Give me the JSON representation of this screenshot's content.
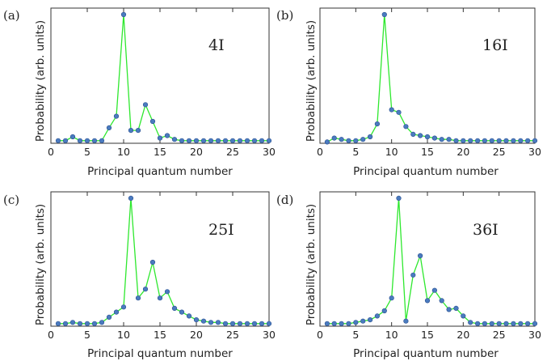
{
  "chart_data": [
    {
      "type": "line",
      "panel_label": "(a)",
      "annotation": "4I",
      "xlabel": "Principal quantum number",
      "ylabel": "Probability (arb. units)",
      "xlim": [
        0,
        30
      ],
      "xticks": [
        0,
        5,
        10,
        15,
        20,
        25,
        30
      ],
      "ylim": [
        0,
        1.05
      ],
      "grid": false,
      "line_color": "#2ee82e",
      "marker_color": "#4a7bbf",
      "x": [
        1,
        2,
        3,
        4,
        5,
        6,
        7,
        8,
        9,
        10,
        11,
        12,
        13,
        14,
        15,
        16,
        17,
        18,
        19,
        20,
        21,
        22,
        23,
        24,
        25,
        26,
        27,
        28,
        29,
        30
      ],
      "y": [
        0.02,
        0.02,
        0.05,
        0.02,
        0.02,
        0.02,
        0.02,
        0.12,
        0.21,
        1.0,
        0.1,
        0.1,
        0.3,
        0.17,
        0.04,
        0.06,
        0.03,
        0.02,
        0.02,
        0.02,
        0.02,
        0.02,
        0.02,
        0.02,
        0.02,
        0.02,
        0.02,
        0.02,
        0.02,
        0.02
      ]
    },
    {
      "type": "line",
      "panel_label": "(b)",
      "annotation": "16I",
      "xlabel": "Principal quantum number",
      "ylabel": "Probability (arb. units)",
      "xlim": [
        0,
        30
      ],
      "xticks": [
        0,
        5,
        10,
        15,
        20,
        25,
        30
      ],
      "ylim": [
        0,
        1.05
      ],
      "grid": false,
      "line_color": "#2ee82e",
      "marker_color": "#4a7bbf",
      "x": [
        1,
        2,
        3,
        4,
        5,
        6,
        7,
        8,
        9,
        10,
        11,
        12,
        13,
        14,
        15,
        16,
        17,
        18,
        19,
        20,
        21,
        22,
        23,
        24,
        25,
        26,
        27,
        28,
        29,
        30
      ],
      "y": [
        0.01,
        0.04,
        0.03,
        0.02,
        0.02,
        0.03,
        0.05,
        0.15,
        1.0,
        0.26,
        0.24,
        0.13,
        0.07,
        0.06,
        0.05,
        0.04,
        0.03,
        0.03,
        0.02,
        0.02,
        0.02,
        0.02,
        0.02,
        0.02,
        0.02,
        0.02,
        0.02,
        0.02,
        0.02,
        0.02
      ]
    },
    {
      "type": "line",
      "panel_label": "(c)",
      "annotation": "25I",
      "xlabel": "Principal quantum number",
      "ylabel": "Probability (arb. units)",
      "xlim": [
        0,
        30
      ],
      "xticks": [
        0,
        5,
        10,
        15,
        20,
        25,
        30
      ],
      "ylim": [
        0,
        1.05
      ],
      "grid": false,
      "line_color": "#2ee82e",
      "marker_color": "#4a7bbf",
      "x": [
        1,
        2,
        3,
        4,
        5,
        6,
        7,
        8,
        9,
        10,
        11,
        12,
        13,
        14,
        15,
        16,
        17,
        18,
        19,
        20,
        21,
        22,
        23,
        24,
        25,
        26,
        27,
        28,
        29,
        30
      ],
      "y": [
        0.02,
        0.02,
        0.03,
        0.02,
        0.02,
        0.02,
        0.03,
        0.07,
        0.11,
        0.15,
        1.0,
        0.22,
        0.29,
        0.5,
        0.22,
        0.27,
        0.14,
        0.11,
        0.08,
        0.05,
        0.04,
        0.03,
        0.03,
        0.02,
        0.02,
        0.02,
        0.02,
        0.02,
        0.02,
        0.02
      ]
    },
    {
      "type": "line",
      "panel_label": "(d)",
      "annotation": "36I",
      "xlabel": "Principal quantum number",
      "ylabel": "Probability (arb. units)",
      "xlim": [
        0,
        30
      ],
      "xticks": [
        0,
        5,
        10,
        15,
        20,
        25,
        30
      ],
      "ylim": [
        0,
        1.05
      ],
      "grid": false,
      "line_color": "#2ee82e",
      "marker_color": "#4a7bbf",
      "x": [
        1,
        2,
        3,
        4,
        5,
        6,
        7,
        8,
        9,
        10,
        11,
        12,
        13,
        14,
        15,
        16,
        17,
        18,
        19,
        20,
        21,
        22,
        23,
        24,
        25,
        26,
        27,
        28,
        29,
        30
      ],
      "y": [
        0.02,
        0.02,
        0.02,
        0.02,
        0.03,
        0.04,
        0.05,
        0.08,
        0.12,
        0.22,
        1.0,
        0.04,
        0.4,
        0.55,
        0.2,
        0.28,
        0.2,
        0.13,
        0.14,
        0.08,
        0.03,
        0.02,
        0.02,
        0.02,
        0.02,
        0.02,
        0.02,
        0.02,
        0.02,
        0.02
      ]
    }
  ]
}
